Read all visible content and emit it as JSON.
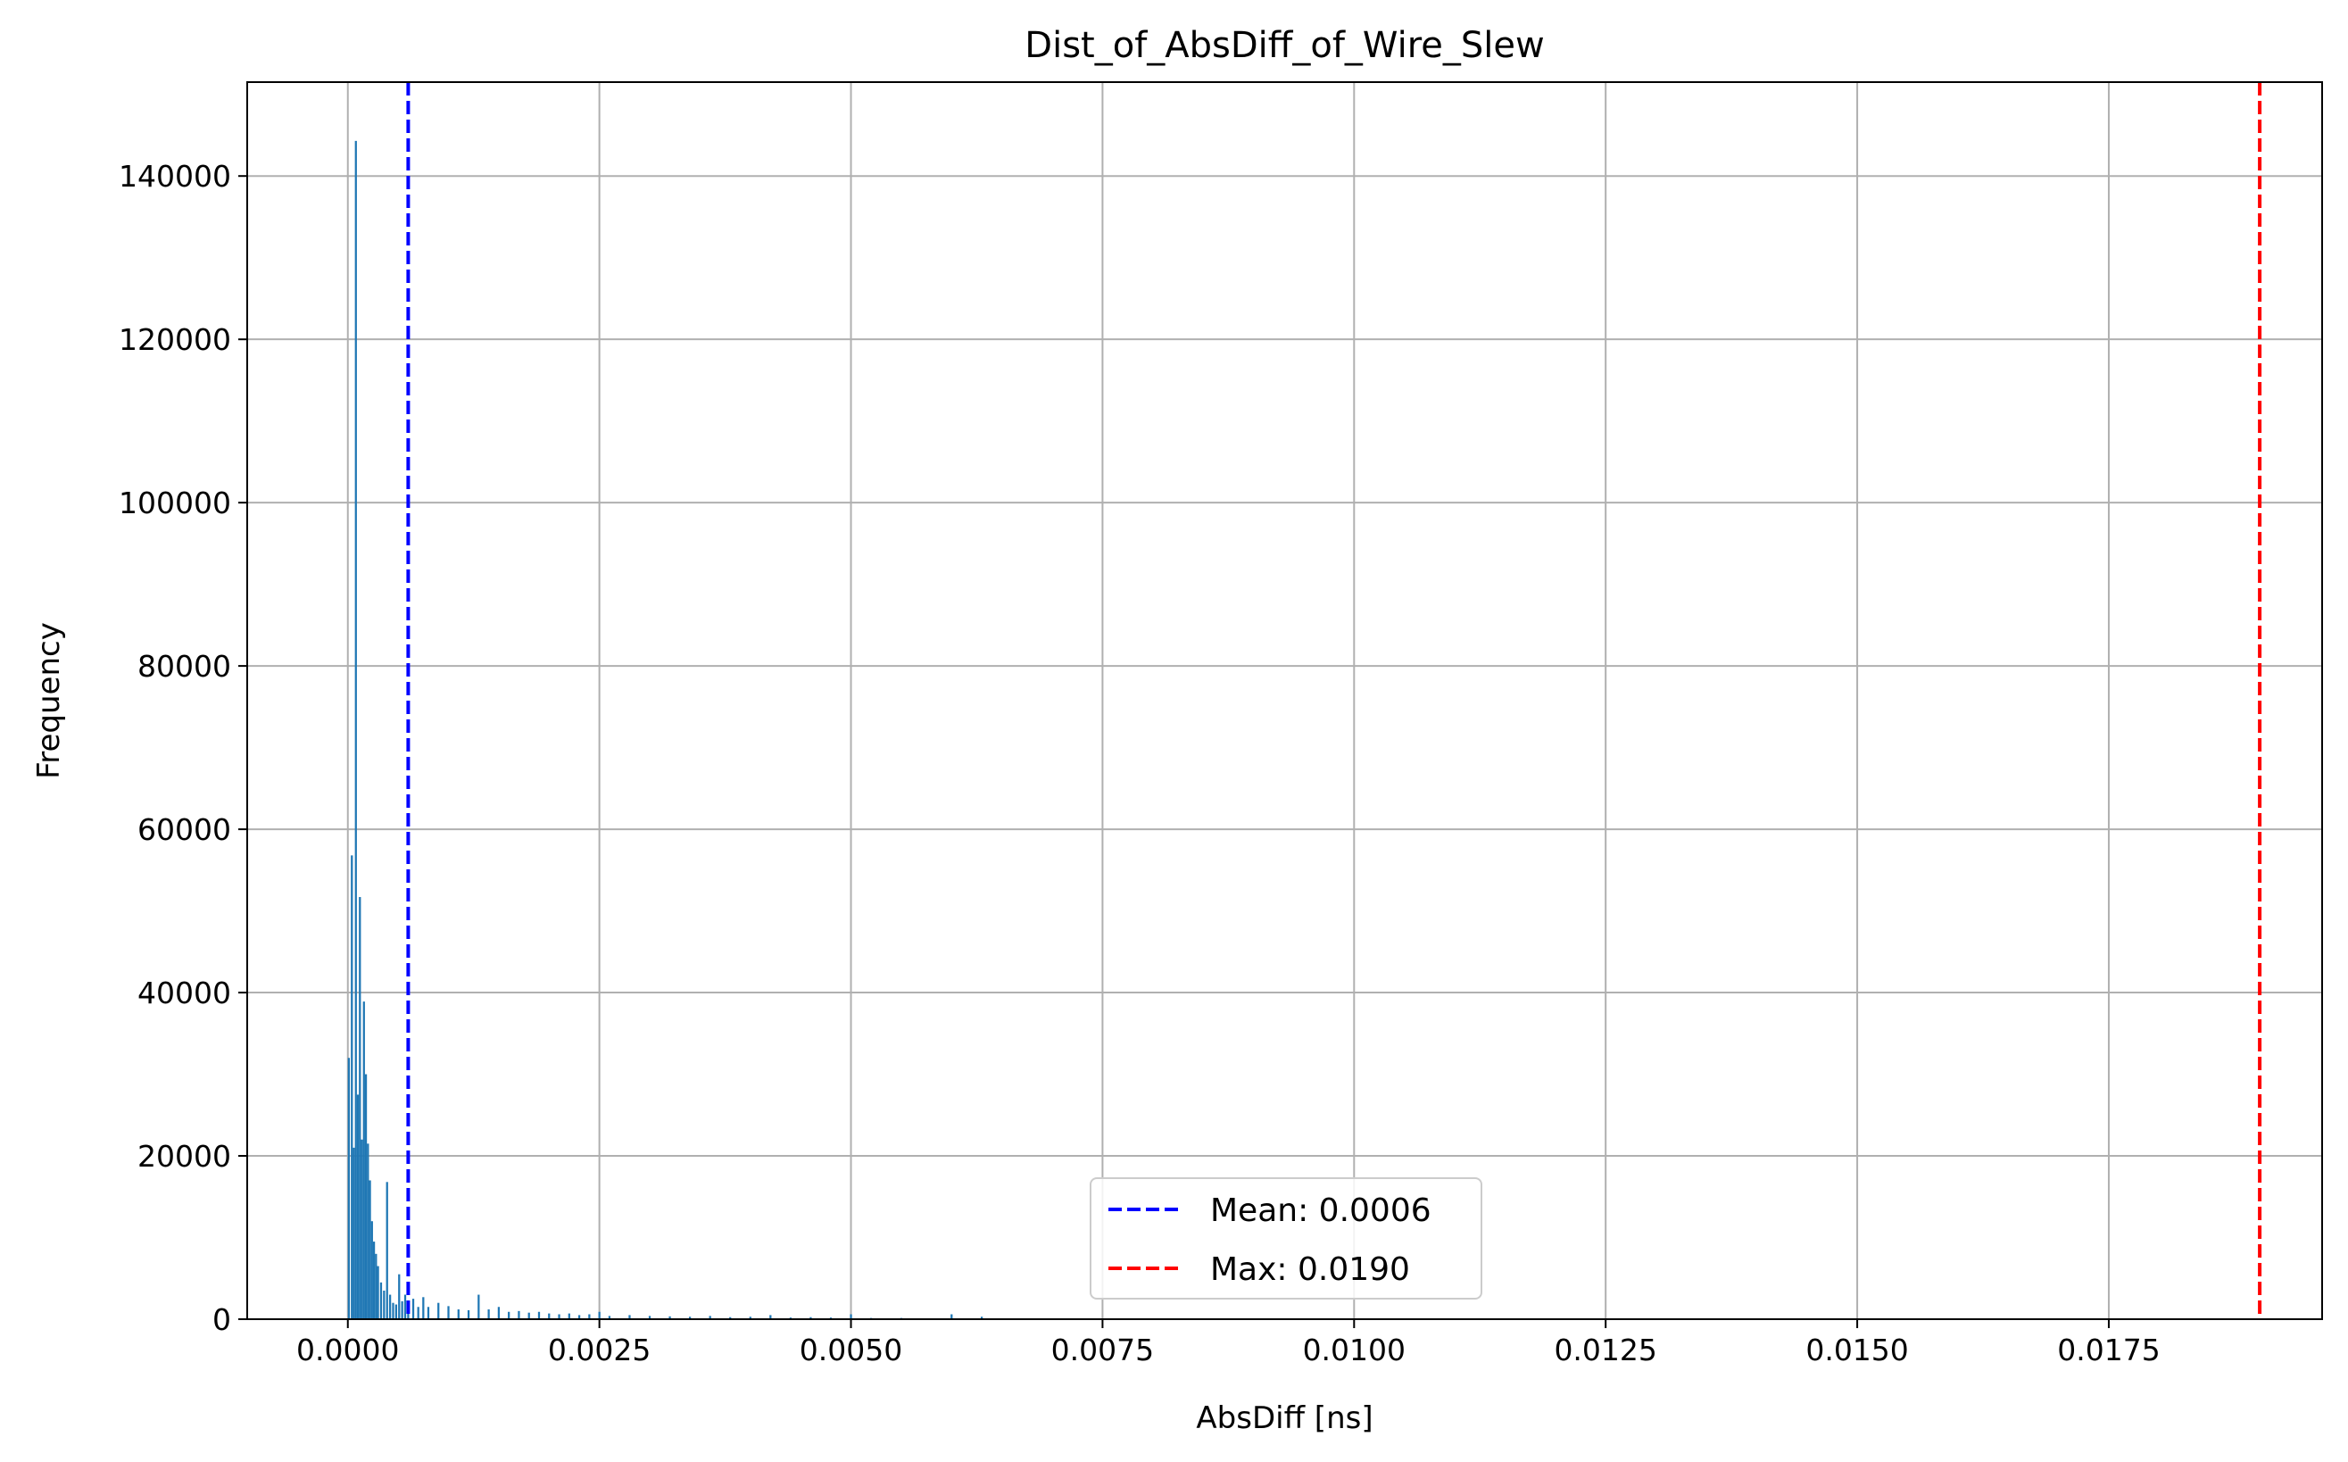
{
  "chart_data": {
    "type": "bar",
    "title": "Dist_of_AbsDiff_of_Wire_Slew",
    "xlabel": "AbsDiff [ns]",
    "ylabel": "Frequency",
    "xlim": [
      -0.001,
      0.01962
    ],
    "ylim": [
      0,
      151500
    ],
    "xticks": [
      0.0,
      0.0025,
      0.005,
      0.0075,
      0.01,
      0.0125,
      0.015,
      0.0175
    ],
    "xtick_labels": [
      "0.0000",
      "0.0025",
      "0.0050",
      "0.0075",
      "0.0100",
      "0.0125",
      "0.0150",
      "0.0175"
    ],
    "yticks": [
      0,
      20000,
      40000,
      60000,
      80000,
      100000,
      120000,
      140000
    ],
    "ytick_labels": [
      "0",
      "20000",
      "40000",
      "60000",
      "80000",
      "100000",
      "120000",
      "140000"
    ],
    "grid": true,
    "legend_position": "bottom-center",
    "bar_color": "#1f77b4",
    "bins": {
      "x": [
        1e-05,
        4e-05,
        6e-05,
        8e-05,
        0.0001,
        0.00012,
        0.00014,
        0.00016,
        0.00018,
        0.0002,
        0.00022,
        0.00024,
        0.00026,
        0.00028,
        0.0003,
        0.00033,
        0.00036,
        0.00039,
        0.00042,
        0.00045,
        0.00048,
        0.00051,
        0.00054,
        0.00057,
        0.0006,
        0.00065,
        0.0007,
        0.00075,
        0.0008,
        0.0009,
        0.001,
        0.0011,
        0.0012,
        0.0013,
        0.0014,
        0.0015,
        0.0016,
        0.0017,
        0.0018,
        0.0019,
        0.002,
        0.0021,
        0.0022,
        0.0023,
        0.0024,
        0.0025,
        0.0026,
        0.0028,
        0.003,
        0.0032,
        0.0034,
        0.0036,
        0.0038,
        0.004,
        0.0042,
        0.0044,
        0.0046,
        0.0048,
        0.005,
        0.0052,
        0.0055,
        0.0058,
        0.006,
        0.0063
      ],
      "width": 2e-05,
      "values": [
        32000,
        56800,
        21000,
        144300,
        27500,
        51700,
        22000,
        38900,
        30000,
        21500,
        17000,
        12000,
        9500,
        8000,
        6500,
        4500,
        3500,
        16800,
        3000,
        2000,
        1800,
        5500,
        2200,
        3000,
        2000,
        2500,
        1500,
        2700,
        1500,
        2000,
        1600,
        1200,
        1100,
        3000,
        1200,
        1500,
        900,
        1000,
        800,
        900,
        700,
        600,
        700,
        500,
        600,
        900,
        400,
        500,
        400,
        350,
        300,
        400,
        250,
        300,
        500,
        200,
        250,
        200,
        600,
        150,
        150,
        100,
        600,
        300
      ]
    },
    "series": [
      {
        "name": "Mean: 0.0006",
        "value": 0.0006,
        "color": "#0000ff",
        "style": "dashed"
      },
      {
        "name": "Max: 0.0190",
        "value": 0.019,
        "color": "#ff0000",
        "style": "dashed"
      }
    ]
  }
}
